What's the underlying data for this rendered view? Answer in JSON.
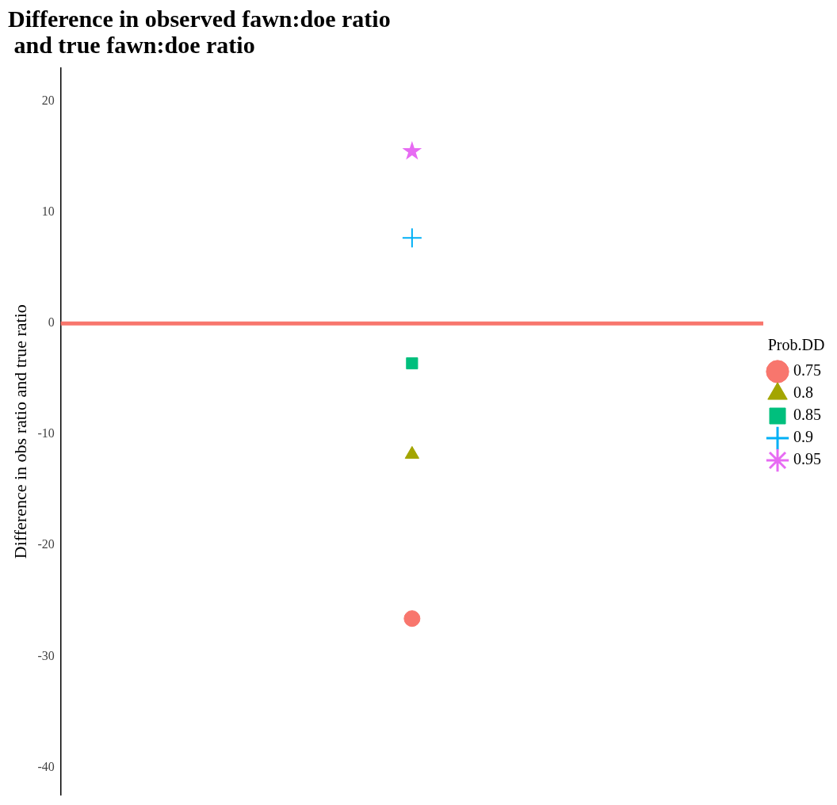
{
  "chart_data": {
    "type": "scatter",
    "title": "Difference in observed fawn:doe ratio\n and true fawn:doe ratio",
    "ylabel": "Difference in obs ratio and true ratio",
    "legend_title": "Prob.DD",
    "legend": "right",
    "grid": false,
    "tick_labels": "y",
    "categories": [
      null
    ],
    "ylim": [
      -42.5,
      23
    ],
    "yticks": [
      -40,
      -30,
      -20,
      -10,
      0,
      10,
      20
    ],
    "ref_lines": [
      {
        "axis": "y",
        "value": 0,
        "color": "#f8766d"
      }
    ],
    "series": [
      {
        "name": "0.75",
        "color": "#f8766d",
        "marker": "circle",
        "values": [
          -26.6
        ]
      },
      {
        "name": "0.8",
        "color": "#a3a500",
        "marker": "triangle",
        "values": [
          -11.8
        ]
      },
      {
        "name": "0.85",
        "color": "#00bf7d",
        "marker": "square",
        "values": [
          -3.6
        ]
      },
      {
        "name": "0.9",
        "color": "#00b0f6",
        "marker": "cross",
        "values": [
          7.7
        ]
      },
      {
        "name": "0.95",
        "color": "#e76bf3",
        "marker": "star",
        "values": [
          15.5
        ]
      }
    ]
  }
}
